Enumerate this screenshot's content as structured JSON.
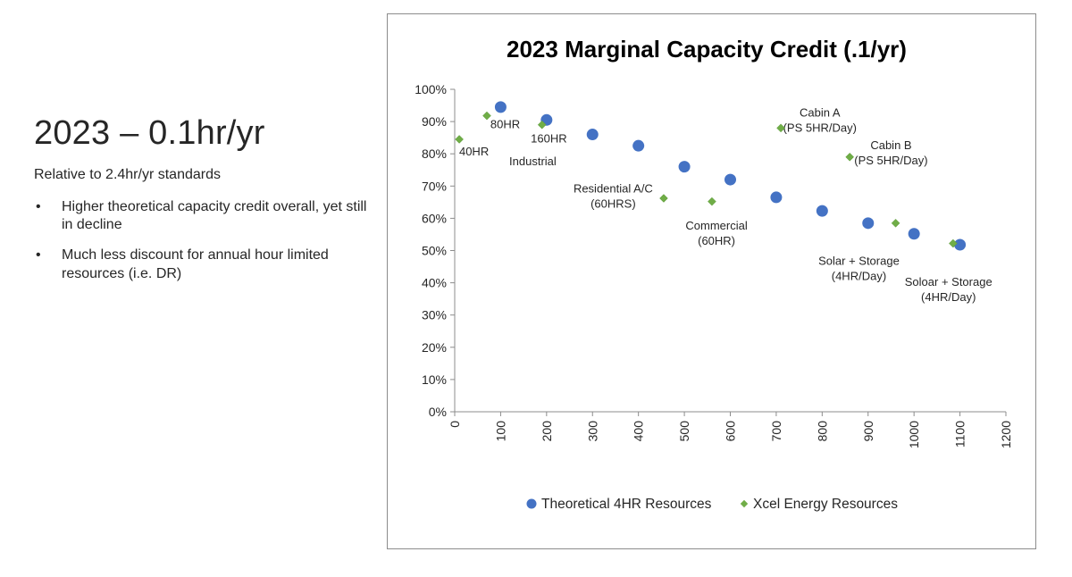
{
  "slide": {
    "title": "2023 – 0.1hr/yr",
    "subtitle": "Relative to 2.4hr/yr standards",
    "bullets": [
      "Higher theoretical capacity credit overall, yet still in decline",
      "Much less discount for annual hour limited resources  (i.e. DR)"
    ]
  },
  "chart_data": {
    "type": "scatter",
    "title": "2023 Marginal Capacity Credit (.1/yr)",
    "xlabel": "",
    "ylabel": "",
    "xlim": [
      0,
      1200
    ],
    "ylim": [
      0,
      1
    ],
    "x_ticks": [
      0,
      100,
      200,
      300,
      400,
      500,
      600,
      700,
      800,
      900,
      1000,
      1100,
      1200
    ],
    "y_ticks": [
      0,
      0.1,
      0.2,
      0.3,
      0.4,
      0.5,
      0.6,
      0.7,
      0.8,
      0.9,
      1.0
    ],
    "y_tick_labels": [
      "0%",
      "10%",
      "20%",
      "30%",
      "40%",
      "50%",
      "60%",
      "70%",
      "80%",
      "90%",
      "100%"
    ],
    "grid": false,
    "legend_position": "bottom",
    "series": [
      {
        "name": "Theoretical 4HR Resources",
        "marker": "circle",
        "color": "#4472C4",
        "x": [
          100,
          200,
          300,
          400,
          500,
          600,
          700,
          800,
          900,
          1000,
          1100
        ],
        "y": [
          0.945,
          0.905,
          0.86,
          0.825,
          0.76,
          0.72,
          0.665,
          0.623,
          0.585,
          0.552,
          0.518
        ]
      },
      {
        "name": "Xcel Energy Resources",
        "marker": "diamond",
        "color": "#70AD47",
        "x": [
          10,
          70,
          190,
          455,
          560,
          710,
          860,
          960,
          1085
        ],
        "y": [
          0.845,
          0.918,
          0.89,
          0.662,
          0.652,
          0.88,
          0.79,
          0.585,
          0.522
        ]
      }
    ],
    "annotations": [
      {
        "lines": [
          "40HR"
        ],
        "x": 42,
        "y": 0.795,
        "anchor": "middle"
      },
      {
        "lines": [
          "80HR"
        ],
        "x": 110,
        "y": 0.88,
        "anchor": "middle"
      },
      {
        "lines": [
          "160HR"
        ],
        "x": 205,
        "y": 0.835,
        "anchor": "middle"
      },
      {
        "lines": [
          "Industrial"
        ],
        "x": 170,
        "y": 0.765,
        "anchor": "middle"
      },
      {
        "lines": [
          "Residential A/C",
          "(60HRS)"
        ],
        "x": 345,
        "y": 0.68,
        "anchor": "middle"
      },
      {
        "lines": [
          "Commercial",
          "(60HR)"
        ],
        "x": 570,
        "y": 0.565,
        "anchor": "middle"
      },
      {
        "lines": [
          "Cabin A",
          "(PS 5HR/Day)"
        ],
        "x": 795,
        "y": 0.915,
        "anchor": "middle"
      },
      {
        "lines": [
          "Cabin B",
          "(PS 5HR/Day)"
        ],
        "x": 950,
        "y": 0.815,
        "anchor": "middle"
      },
      {
        "lines": [
          "Solar + Storage",
          "(4HR/Day)"
        ],
        "x": 880,
        "y": 0.455,
        "anchor": "middle"
      },
      {
        "lines": [
          "Soloar + Storage",
          "(4HR/Day)"
        ],
        "x": 1075,
        "y": 0.39,
        "anchor": "middle"
      }
    ]
  }
}
